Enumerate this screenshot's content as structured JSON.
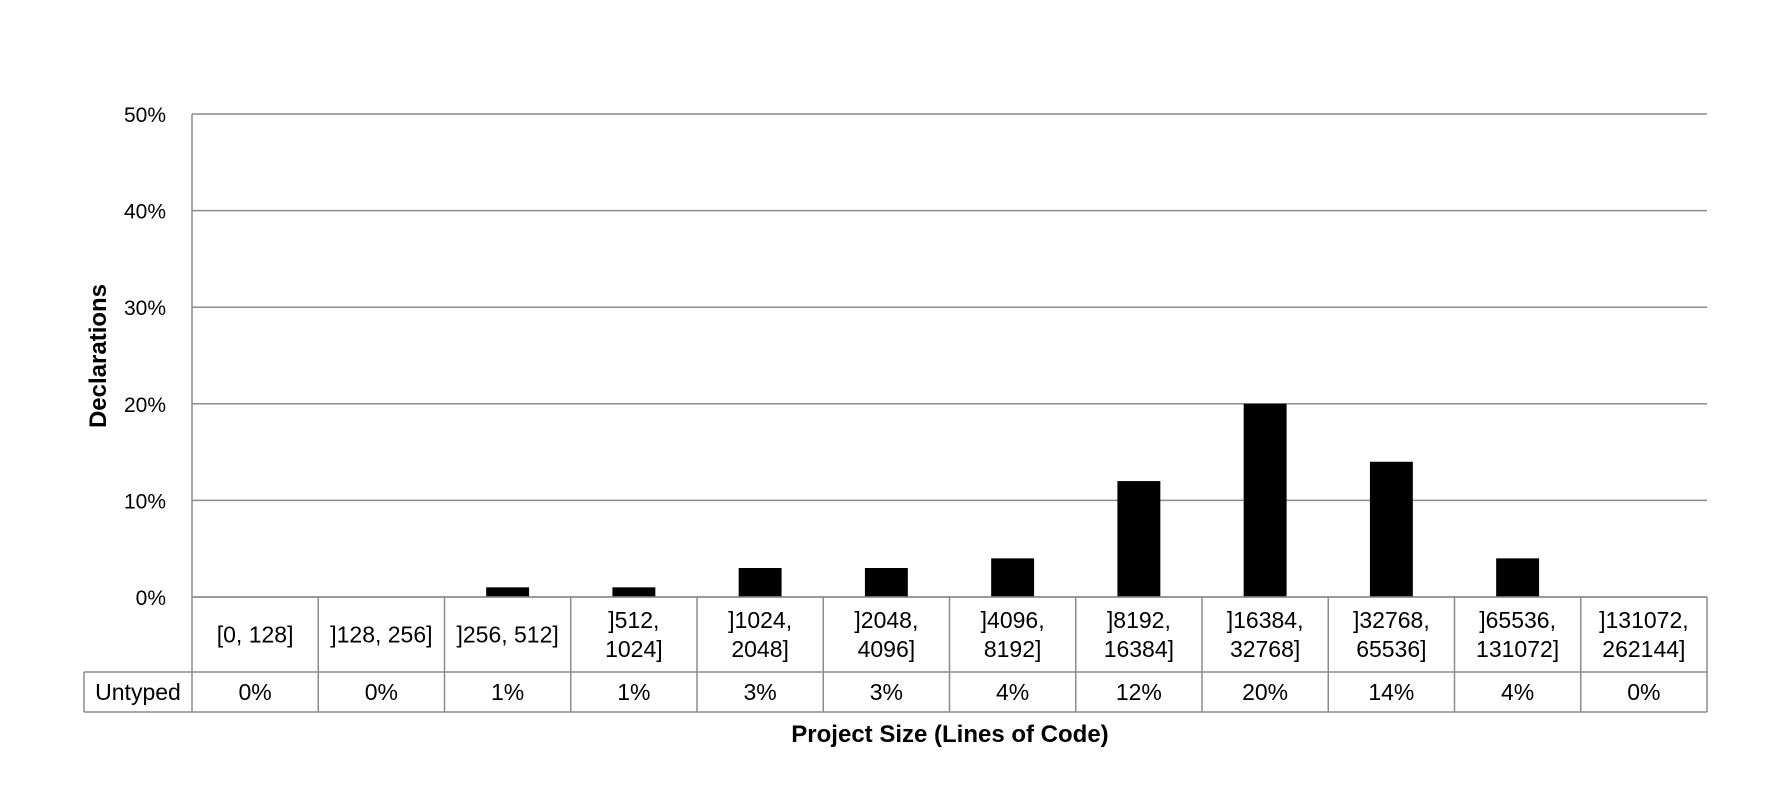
{
  "chart_data": {
    "type": "bar",
    "categories": [
      [
        "[0, 128]"
      ],
      [
        "]128, 256]"
      ],
      [
        "]256, 512]"
      ],
      [
        "]512,",
        "1024]"
      ],
      [
        "]1024,",
        "2048]"
      ],
      [
        "]2048,",
        "4096]"
      ],
      [
        "]4096,",
        "8192]"
      ],
      [
        "]8192,",
        "16384]"
      ],
      [
        "]16384,",
        "32768]"
      ],
      [
        "]32768,",
        "65536]"
      ],
      [
        "]65536,",
        "131072]"
      ],
      [
        "]131072,",
        "262144]"
      ]
    ],
    "series": [
      {
        "name": "Untyped",
        "values": [
          0,
          0,
          1,
          1,
          3,
          3,
          4,
          12,
          20,
          14,
          4,
          0
        ],
        "value_labels": [
          "0%",
          "0%",
          "1%",
          "1%",
          "3%",
          "3%",
          "4%",
          "12%",
          "20%",
          "14%",
          "4%",
          "0%"
        ],
        "color": "#000000"
      }
    ],
    "xlabel": "Project Size (Lines of Code)",
    "ylabel": "Declarations",
    "ylim": [
      0,
      50
    ],
    "yticks": [
      0,
      10,
      20,
      30,
      40,
      50
    ],
    "ytick_labels": [
      "0%",
      "10%",
      "20%",
      "30%",
      "40%",
      "50%"
    ],
    "grid": true,
    "data_table": true
  }
}
